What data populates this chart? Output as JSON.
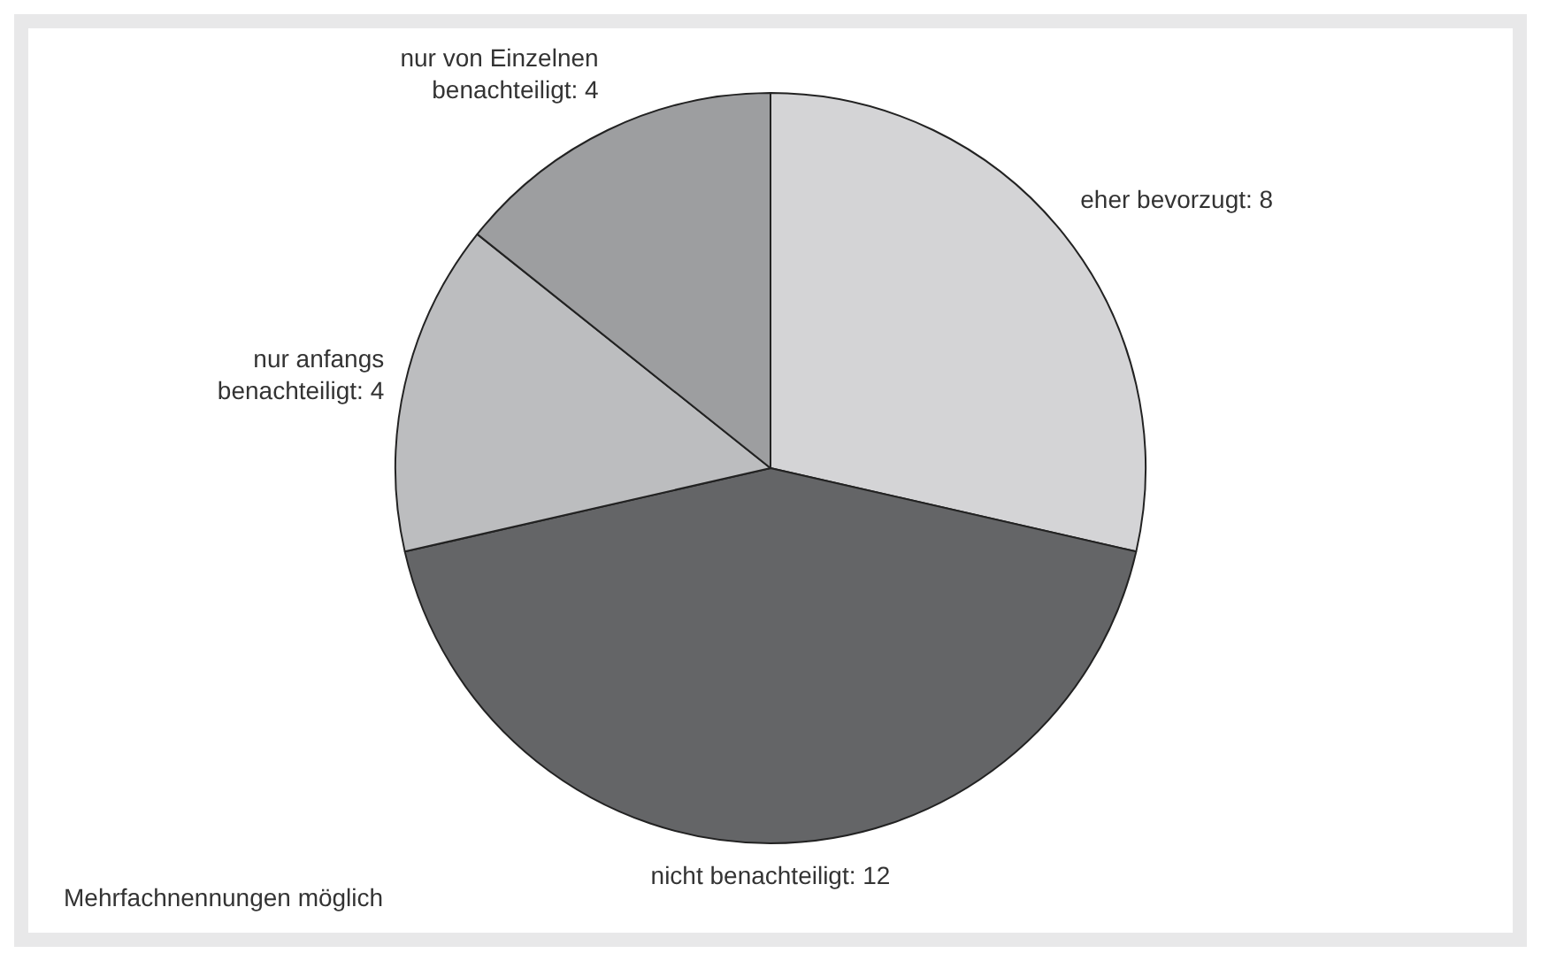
{
  "chart_data": {
    "type": "pie",
    "categories": [
      "eher bevorzugt",
      "nicht benachteiligt",
      "nur anfangs benachteiligt",
      "nur von Einzelnen benachteiligt"
    ],
    "values": [
      8,
      12,
      4,
      4
    ],
    "colors": [
      "#d4d4d6",
      "#646567",
      "#bcbdbf",
      "#9d9ea0"
    ],
    "value_labels": [
      ": 8",
      ": 12",
      ": 4",
      ": 4"
    ],
    "legend": false,
    "annotations": [
      "Mehrfachnennungen möglich"
    ]
  }
}
